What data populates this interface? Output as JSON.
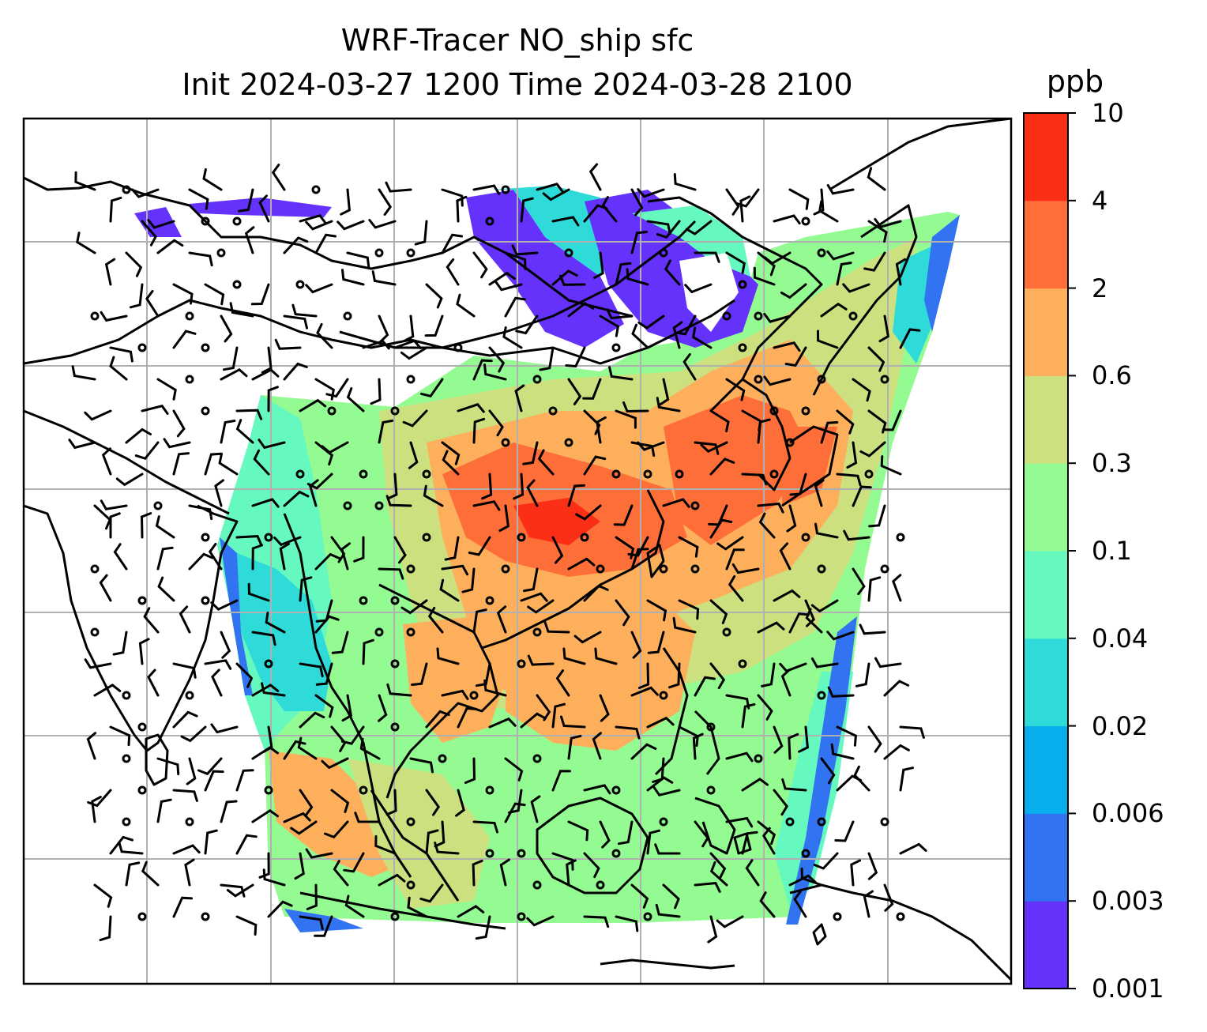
{
  "title": {
    "line1": "WRF-Tracer NO_ship sfc",
    "line2": "Init 2024-03-27 1200 Time 2024-03-28 2100"
  },
  "colorbar": {
    "unit": "ppb",
    "levels": [
      "0.001",
      "0.003",
      "0.006",
      "0.02",
      "0.04",
      "0.1",
      "0.3",
      "0.6",
      "2",
      "4",
      "10"
    ],
    "colors": [
      "#6432fa",
      "#3173f0",
      "#06aeec",
      "#2edbd8",
      "#65f8bf",
      "#94fa92",
      "#cde080",
      "#fdaf5c",
      "#fd6e38",
      "#fb2e16"
    ]
  },
  "map": {
    "gridlines": true,
    "fill_colors": {
      "veryLow": "#6432fa",
      "low": "#3173f0",
      "cyan": "#2edbd8",
      "aqua": "#65f8bf",
      "green": "#94fa92",
      "olive": "#cde080",
      "orange": "#fdaf5c",
      "redorange": "#fd6e38",
      "red": "#fb2e16"
    },
    "coastline_color": "#000000",
    "grid_color": "#b0b0b0"
  }
}
